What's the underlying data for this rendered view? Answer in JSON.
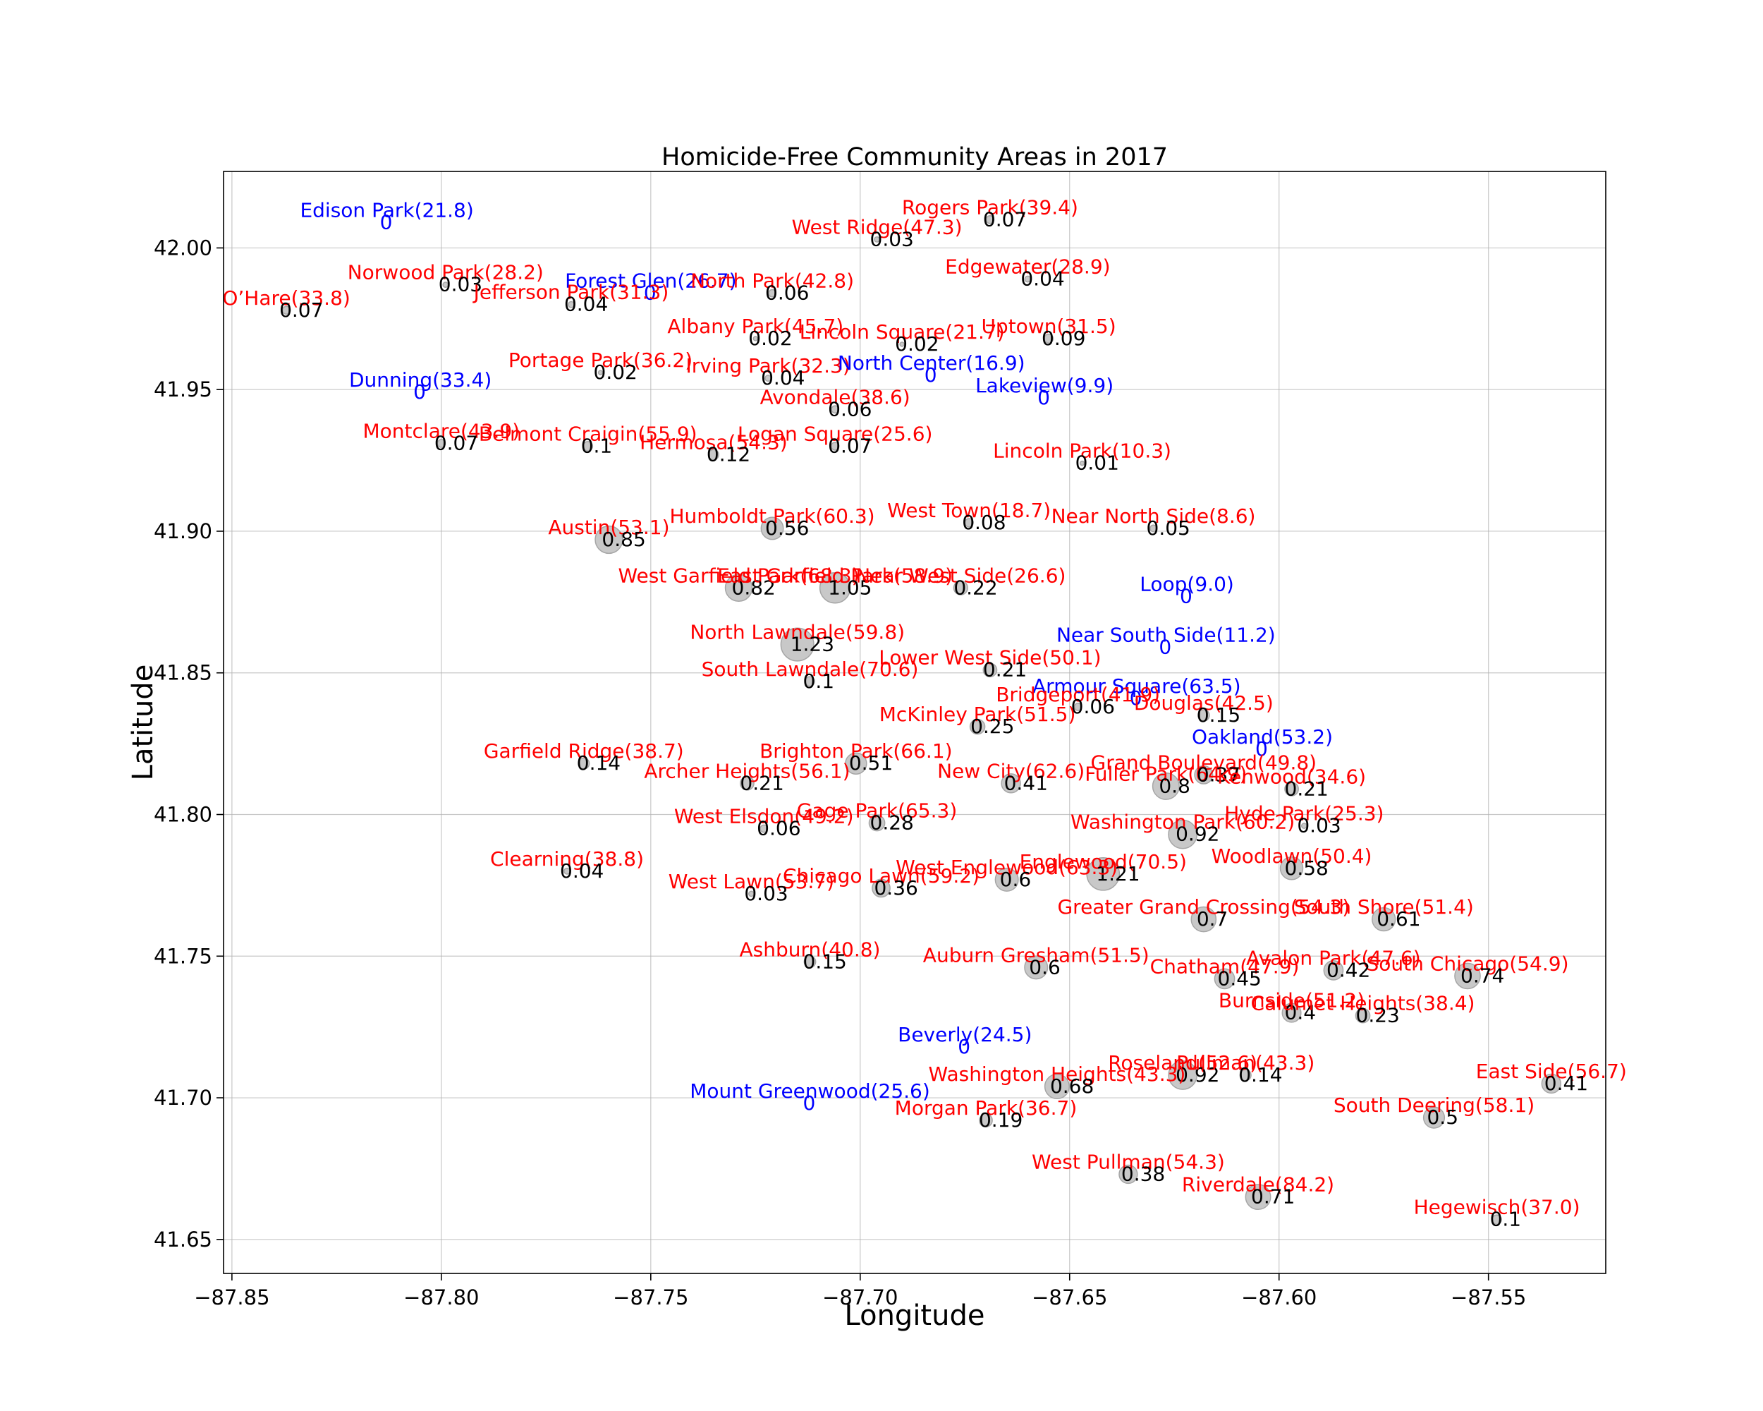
{
  "chart_data": {
    "type": "scatter",
    "title": "Homicide-Free Community Areas in 2017",
    "xlabel": "Longitude",
    "ylabel": "Latitude",
    "xlim": [
      -87.852,
      -87.522
    ],
    "ylim": [
      41.638,
      42.027
    ],
    "xticks": [
      "−87.85",
      "−87.80",
      "−87.75",
      "−87.70",
      "−87.65",
      "−87.60",
      "−87.55"
    ],
    "yticks": [
      "41.65",
      "41.70",
      "41.75",
      "41.80",
      "41.85",
      "41.90",
      "41.95",
      "42.00"
    ],
    "xtick_values": [
      -87.85,
      -87.8,
      -87.75,
      -87.7,
      -87.65,
      -87.6,
      -87.55
    ],
    "ytick_values": [
      41.65,
      41.7,
      41.75,
      41.8,
      41.85,
      41.9,
      41.95,
      42.0
    ],
    "grid": true,
    "colors": {
      "has_homicide": "#ff0000",
      "homicide_free": "#0000ff",
      "bubble": "#c8c8c8",
      "bubble_edge": "#a6a6a6"
    },
    "points": [
      {
        "name": "Edison Park(21.8)",
        "value": "0",
        "x": -87.813,
        "y": 42.009,
        "free": true
      },
      {
        "name": "Rogers Park(39.4)",
        "value": "0.07",
        "x": -87.669,
        "y": 42.01,
        "free": false
      },
      {
        "name": "West Ridge(47.3)",
        "value": "0.03",
        "x": -87.696,
        "y": 42.003,
        "free": false
      },
      {
        "name": "Norwood Park(28.2)",
        "value": "0.03",
        "x": -87.799,
        "y": 41.987,
        "free": false
      },
      {
        "name": "Forest Glen(26.7)",
        "value": "0",
        "x": -87.75,
        "y": 41.984,
        "free": true
      },
      {
        "name": "North Park(42.8)",
        "value": "0.06",
        "x": -87.721,
        "y": 41.984,
        "free": false
      },
      {
        "name": "Edgewater(28.9)",
        "value": "0.04",
        "x": -87.66,
        "y": 41.989,
        "free": false
      },
      {
        "name": "O’Hare(33.8)",
        "value": "0.07",
        "x": -87.837,
        "y": 41.978,
        "free": false
      },
      {
        "name": "Jefferson Park(31.3)",
        "value": "0.04",
        "x": -87.769,
        "y": 41.98,
        "free": false
      },
      {
        "name": "Albany Park(45.7)",
        "value": "0.02",
        "x": -87.725,
        "y": 41.968,
        "free": false
      },
      {
        "name": "Lincoln Square(21.7)",
        "value": "0.02",
        "x": -87.69,
        "y": 41.966,
        "free": false
      },
      {
        "name": "Uptown(31.5)",
        "value": "0.09",
        "x": -87.655,
        "y": 41.968,
        "free": false
      },
      {
        "name": "Portage Park(36.2)",
        "value": "0.02",
        "x": -87.762,
        "y": 41.956,
        "free": false
      },
      {
        "name": "Irving Park(32.3)",
        "value": "0.04",
        "x": -87.722,
        "y": 41.954,
        "free": false
      },
      {
        "name": "North Center(16.9)",
        "value": "0",
        "x": -87.683,
        "y": 41.955,
        "free": true
      },
      {
        "name": "Dunning(33.4)",
        "value": "0",
        "x": -87.805,
        "y": 41.949,
        "free": true
      },
      {
        "name": "Lakeview(9.9)",
        "value": "0",
        "x": -87.656,
        "y": 41.947,
        "free": true
      },
      {
        "name": "Avondale(38.6)",
        "value": "0.06",
        "x": -87.706,
        "y": 41.943,
        "free": false
      },
      {
        "name": "Belmont Craigin(55.9)",
        "value": "0.1",
        "x": -87.765,
        "y": 41.93,
        "free": false
      },
      {
        "name": "Montclare(43.9)",
        "value": "0.07",
        "x": -87.8,
        "y": 41.931,
        "free": false
      },
      {
        "name": "Hermosa(54.3)",
        "value": "0.12",
        "x": -87.735,
        "y": 41.927,
        "free": false
      },
      {
        "name": "Logan Square(25.6)",
        "value": "0.07",
        "x": -87.706,
        "y": 41.93,
        "free": false
      },
      {
        "name": "Lincoln Park(10.3)",
        "value": "0.01",
        "x": -87.647,
        "y": 41.924,
        "free": false
      },
      {
        "name": "Austin(53.1)",
        "value": "0.85",
        "x": -87.76,
        "y": 41.897,
        "free": false
      },
      {
        "name": "Humboldt Park(60.3)",
        "value": "0.56",
        "x": -87.721,
        "y": 41.901,
        "free": false
      },
      {
        "name": "West Town(18.7)",
        "value": "0.08",
        "x": -87.674,
        "y": 41.903,
        "free": false
      },
      {
        "name": "Near North Side(8.6)",
        "value": "0.05",
        "x": -87.63,
        "y": 41.901,
        "free": false
      },
      {
        "name": "West Garfield Park(68.3)",
        "value": "0.82",
        "x": -87.729,
        "y": 41.88,
        "free": false
      },
      {
        "name": "East Garfield Park(58.9)",
        "value": "1.05",
        "x": -87.706,
        "y": 41.88,
        "free": false
      },
      {
        "name": "Near West Side(26.6)",
        "value": "0.22",
        "x": -87.676,
        "y": 41.88,
        "free": false
      },
      {
        "name": "Loop(9.0)",
        "value": "0",
        "x": -87.622,
        "y": 41.877,
        "free": true,
        "large": true
      },
      {
        "name": "North Lawndale(59.8)",
        "value": "1.23",
        "x": -87.715,
        "y": 41.86,
        "free": false
      },
      {
        "name": "Near South Side(11.2)",
        "value": "0",
        "x": -87.627,
        "y": 41.859,
        "free": true
      },
      {
        "name": "Lower West Side(50.1)",
        "value": "0.21",
        "x": -87.669,
        "y": 41.851,
        "free": false
      },
      {
        "name": "South Lawndale(70.6)",
        "value": "0.1",
        "x": -87.712,
        "y": 41.847,
        "free": false
      },
      {
        "name": "Armour Square(63.5)",
        "value": "0",
        "x": -87.634,
        "y": 41.841,
        "free": true
      },
      {
        "name": "Bridgeport(41.9)",
        "value": "0.06",
        "x": -87.648,
        "y": 41.838,
        "free": false
      },
      {
        "name": "Douglas(42.5)",
        "value": "0.15",
        "x": -87.618,
        "y": 41.835,
        "free": false
      },
      {
        "name": "McKinley Park(51.5)",
        "value": "0.25",
        "x": -87.672,
        "y": 41.831,
        "free": false
      },
      {
        "name": "Oakland(53.2)",
        "value": "0",
        "x": -87.604,
        "y": 41.823,
        "free": true
      },
      {
        "name": "Brighton Park(66.1)",
        "value": "0.51",
        "x": -87.701,
        "y": 41.818,
        "free": false
      },
      {
        "name": "Garfield Ridge(38.7)",
        "value": "0.14",
        "x": -87.766,
        "y": 41.818,
        "free": false
      },
      {
        "name": "Archer Heights(56.1)",
        "value": "0.21",
        "x": -87.727,
        "y": 41.811,
        "free": false
      },
      {
        "name": "New City(62.6)",
        "value": "0.41",
        "x": -87.664,
        "y": 41.811,
        "free": false
      },
      {
        "name": "Fuller Park(64.9)",
        "value": "0.8",
        "x": -87.627,
        "y": 41.81,
        "free": false
      },
      {
        "name": "Grand Boulevard(49.8)",
        "value": "0.37",
        "x": -87.618,
        "y": 41.814,
        "free": false
      },
      {
        "name": "Kenwood(34.6)",
        "value": "0.21",
        "x": -87.597,
        "y": 41.809,
        "free": false
      },
      {
        "name": "Gage Park(65.3)",
        "value": "0.28",
        "x": -87.696,
        "y": 41.797,
        "free": false
      },
      {
        "name": "West Elsdon(49.2)",
        "value": "0.06",
        "x": -87.723,
        "y": 41.795,
        "free": false
      },
      {
        "name": "Washington Park(60.2)",
        "value": "0.92",
        "x": -87.623,
        "y": 41.793,
        "free": false
      },
      {
        "name": "Hyde Park(25.3)",
        "value": "0.03",
        "x": -87.594,
        "y": 41.796,
        "free": false
      },
      {
        "name": "Clearning(38.8)",
        "value": "0.04",
        "x": -87.77,
        "y": 41.78,
        "free": false
      },
      {
        "name": "Englewood(70.5)",
        "value": "1.21",
        "x": -87.642,
        "y": 41.779,
        "free": false
      },
      {
        "name": "Woodlawn(50.4)",
        "value": "0.58",
        "x": -87.597,
        "y": 41.781,
        "free": false
      },
      {
        "name": "West Englewood(63.3)",
        "value": "0.6",
        "x": -87.665,
        "y": 41.777,
        "free": false
      },
      {
        "name": "West Lawn(53.7)",
        "value": "0.03",
        "x": -87.726,
        "y": 41.772,
        "free": false
      },
      {
        "name": "Chicago Lawn(59.2)",
        "value": "0.36",
        "x": -87.695,
        "y": 41.774,
        "free": false
      },
      {
        "name": "Greater Grand Crossing(54.3)",
        "value": "0.7",
        "x": -87.618,
        "y": 41.763,
        "free": false
      },
      {
        "name": "South Shore(51.4)",
        "value": "0.61",
        "x": -87.575,
        "y": 41.763,
        "free": false
      },
      {
        "name": "Ashburn(40.8)",
        "value": "0.15",
        "x": -87.712,
        "y": 41.748,
        "free": false
      },
      {
        "name": "Auburn Gresham(51.5)",
        "value": "0.6",
        "x": -87.658,
        "y": 41.746,
        "free": false
      },
      {
        "name": "Avalon Park(47.6)",
        "value": "0.42",
        "x": -87.587,
        "y": 41.745,
        "free": false
      },
      {
        "name": "Chatham(47.9)",
        "value": "0.45",
        "x": -87.613,
        "y": 41.742,
        "free": false
      },
      {
        "name": "South Chicago(54.9)",
        "value": "0.74",
        "x": -87.555,
        "y": 41.743,
        "free": false
      },
      {
        "name": "Burnside(51.2)",
        "value": "0.4",
        "x": -87.597,
        "y": 41.73,
        "free": false
      },
      {
        "name": "Calumet Heights(38.4)",
        "value": "0.23",
        "x": -87.58,
        "y": 41.729,
        "free": false
      },
      {
        "name": "Beverly(24.5)",
        "value": "0",
        "x": -87.675,
        "y": 41.718,
        "free": true
      },
      {
        "name": "Roseland(52.6)",
        "value": "0.92",
        "x": -87.623,
        "y": 41.708,
        "free": false
      },
      {
        "name": "Washington Heights(43.3)",
        "value": "0.68",
        "x": -87.653,
        "y": 41.704,
        "free": false
      },
      {
        "name": "Pullman(43.3)",
        "value": "0.14",
        "x": -87.608,
        "y": 41.708,
        "free": false
      },
      {
        "name": "East Side(56.7)",
        "value": "0.41",
        "x": -87.535,
        "y": 41.705,
        "free": false
      },
      {
        "name": "Mount Greenwood(25.6)",
        "value": "0",
        "x": -87.712,
        "y": 41.698,
        "free": true
      },
      {
        "name": "Morgan Park(36.7)",
        "value": "0.19",
        "x": -87.67,
        "y": 41.692,
        "free": false
      },
      {
        "name": "South Deering(58.1)",
        "value": "0.5",
        "x": -87.563,
        "y": 41.693,
        "free": false
      },
      {
        "name": "West Pullman(54.3)",
        "value": "0.38",
        "x": -87.636,
        "y": 41.673,
        "free": false
      },
      {
        "name": "Riverdale(84.2)",
        "value": "0.71",
        "x": -87.605,
        "y": 41.665,
        "free": false
      },
      {
        "name": "Hegewisch(37.0)",
        "value": "0.1",
        "x": -87.548,
        "y": 41.657,
        "free": false
      }
    ]
  }
}
